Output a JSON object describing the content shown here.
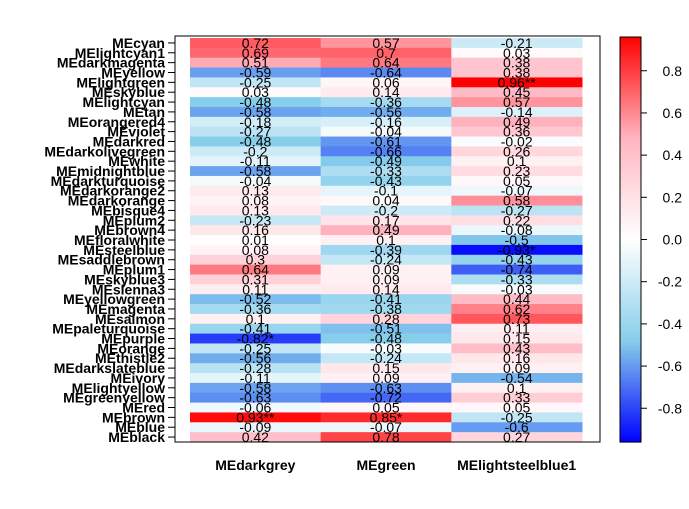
{
  "chart_data": {
    "type": "heatmap",
    "title": "",
    "xlabel": "",
    "ylabel": "",
    "columns": [
      "MEdarkgrey",
      "MEgreen",
      "MElightsteelblue1"
    ],
    "rows": [
      "MEcyan",
      "MElightcyan1",
      "MEdarkmagenta",
      "MEyellow",
      "MElightgreen",
      "MEskyblue",
      "MElightcyan",
      "MEtan",
      "MEorangered4",
      "MEviolet",
      "MEdarkred",
      "MEdarkolivegreen",
      "MEwhite",
      "MEmidnightblue",
      "MEdarkturquoise",
      "MEdarkorange2",
      "MEdarkorange",
      "MEbisque4",
      "MEplum2",
      "MEbrown4",
      "MEfloralwhite",
      "MEsteelblue",
      "MEsaddlebrown",
      "MEplum1",
      "MEskyblue3",
      "MEsienna3",
      "MEyellowgreen",
      "MEmagenta",
      "MEsalmon",
      "MEpaleturquoise",
      "MEpurple",
      "MEorange",
      "MEthistle2",
      "MEdarkslateblue",
      "MEivory",
      "MElightyellow",
      "MEgreenyellow",
      "MEred",
      "MEbrown",
      "MEblue",
      "MEblack"
    ],
    "values": [
      [
        0.72,
        0.57,
        -0.21
      ],
      [
        0.69,
        0.7,
        0.03
      ],
      [
        0.51,
        0.64,
        0.38
      ],
      [
        -0.59,
        -0.64,
        0.38
      ],
      [
        -0.25,
        0.06,
        0.96
      ],
      [
        0.03,
        0.14,
        0.45
      ],
      [
        -0.48,
        -0.36,
        0.57
      ],
      [
        -0.58,
        -0.56,
        -0.14
      ],
      [
        -0.18,
        -0.16,
        0.49
      ],
      [
        -0.27,
        -0.04,
        0.36
      ],
      [
        -0.48,
        -0.61,
        -0.02
      ],
      [
        -0.2,
        -0.66,
        0.26
      ],
      [
        -0.11,
        -0.49,
        0.1
      ],
      [
        -0.58,
        -0.33,
        0.23
      ],
      [
        -0.04,
        -0.43,
        0.05
      ],
      [
        0.13,
        -0.1,
        -0.07
      ],
      [
        0.08,
        0.04,
        0.58
      ],
      [
        0.13,
        -0.2,
        -0.27
      ],
      [
        -0.23,
        0.17,
        0.22
      ],
      [
        0.16,
        0.49,
        -0.08
      ],
      [
        0.01,
        0.1,
        -0.5
      ],
      [
        0.08,
        -0.39,
        -0.93
      ],
      [
        0.3,
        -0.24,
        -0.43
      ],
      [
        0.64,
        0.09,
        -0.74
      ],
      [
        0.31,
        0.09,
        -0.33
      ],
      [
        0.11,
        0.14,
        -0.03
      ],
      [
        -0.52,
        -0.41,
        0.44
      ],
      [
        -0.36,
        -0.38,
        0.62
      ],
      [
        0.1,
        0.28,
        0.73
      ],
      [
        -0.41,
        -0.51,
        0.11
      ],
      [
        -0.82,
        -0.48,
        0.15
      ],
      [
        -0.25,
        -0.03,
        0.43
      ],
      [
        -0.56,
        -0.24,
        0.16
      ],
      [
        -0.28,
        0.15,
        0.09
      ],
      [
        -0.11,
        0.09,
        -0.54
      ],
      [
        -0.58,
        -0.63,
        0.1
      ],
      [
        -0.63,
        -0.72,
        0.33
      ],
      [
        -0.06,
        0.05,
        0.05
      ],
      [
        0.93,
        0.85,
        -0.25
      ],
      [
        -0.09,
        -0.07,
        -0.6
      ],
      [
        0.42,
        0.78,
        0.27
      ]
    ],
    "cell_labels": [
      [
        "0.72",
        "0.57",
        "-0.21"
      ],
      [
        "0.69",
        "0.7",
        "0.03"
      ],
      [
        "0.51",
        "0.64",
        "0.38"
      ],
      [
        "-0.59",
        "-0.64",
        "0.38"
      ],
      [
        "-0.25",
        "0.06",
        "0.96**"
      ],
      [
        "0.03",
        "0.14",
        "0.45"
      ],
      [
        "-0.48",
        "-0.36",
        "0.57"
      ],
      [
        "-0.58",
        "-0.56",
        "-0.14"
      ],
      [
        "-0.18",
        "-0.16",
        "0.49"
      ],
      [
        "-0.27",
        "-0.04",
        "0.36"
      ],
      [
        "-0.48",
        "-0.61",
        "-0.02"
      ],
      [
        "-0.2",
        "-0.66",
        "0.26"
      ],
      [
        "-0.11",
        "-0.49",
        "0.1"
      ],
      [
        "-0.58",
        "-0.33",
        "0.23"
      ],
      [
        "-0.04",
        "-0.43",
        "0.05"
      ],
      [
        "0.13",
        "-0.1",
        "-0.07"
      ],
      [
        "0.08",
        "0.04",
        "0.58"
      ],
      [
        "0.13",
        "-0.2",
        "-0.27"
      ],
      [
        "-0.23",
        "0.17",
        "0.22"
      ],
      [
        "0.16",
        "0.49",
        "-0.08"
      ],
      [
        "0.01",
        "0.1",
        "-0.5"
      ],
      [
        "0.08",
        "-0.39",
        "-0.93*"
      ],
      [
        "0.3",
        "-0.24",
        "-0.43"
      ],
      [
        "0.64",
        "0.09",
        "-0.74"
      ],
      [
        "0.31",
        "0.09",
        "-0.33"
      ],
      [
        "0.11",
        "0.14",
        "-0.03"
      ],
      [
        "-0.52",
        "-0.41",
        "0.44"
      ],
      [
        "-0.36",
        "-0.38",
        "0.62"
      ],
      [
        "0.1",
        "0.28",
        "0.73"
      ],
      [
        "-0.41",
        "-0.51",
        "0.11"
      ],
      [
        "-0.82*",
        "-0.48",
        "0.15"
      ],
      [
        "-0.25",
        "-0.03",
        "0.43"
      ],
      [
        "-0.56",
        "-0.24",
        "0.16"
      ],
      [
        "-0.28",
        "0.15",
        "0.09"
      ],
      [
        "-0.11",
        "0.09",
        "-0.54"
      ],
      [
        "-0.58",
        "-0.63",
        "0.1"
      ],
      [
        "-0.63",
        "-0.72",
        "0.33"
      ],
      [
        "-0.06",
        "0.05",
        "0.05"
      ],
      [
        "0.93**",
        "0.85*",
        "-0.25"
      ],
      [
        "-0.09",
        "-0.07",
        "-0.6"
      ],
      [
        "0.42",
        "0.78",
        "0.27"
      ]
    ],
    "colorbar": {
      "range": [
        -0.96,
        0.96
      ],
      "ticks": [
        -0.8,
        -0.6,
        -0.4,
        -0.2,
        0.0,
        0.2,
        0.4,
        0.6,
        0.8
      ],
      "tick_labels": [
        "-0.8",
        "-0.6",
        "-0.4",
        "-0.2",
        "0.0",
        "0.2",
        "0.4",
        "0.6",
        "0.8"
      ],
      "colors": {
        "low": "#0000ff",
        "mid_low": "#87ceeb",
        "mid": "#ffffff",
        "mid_high": "#ffb6c1",
        "high": "#ff0000"
      }
    },
    "grid": false,
    "legend": "right"
  }
}
